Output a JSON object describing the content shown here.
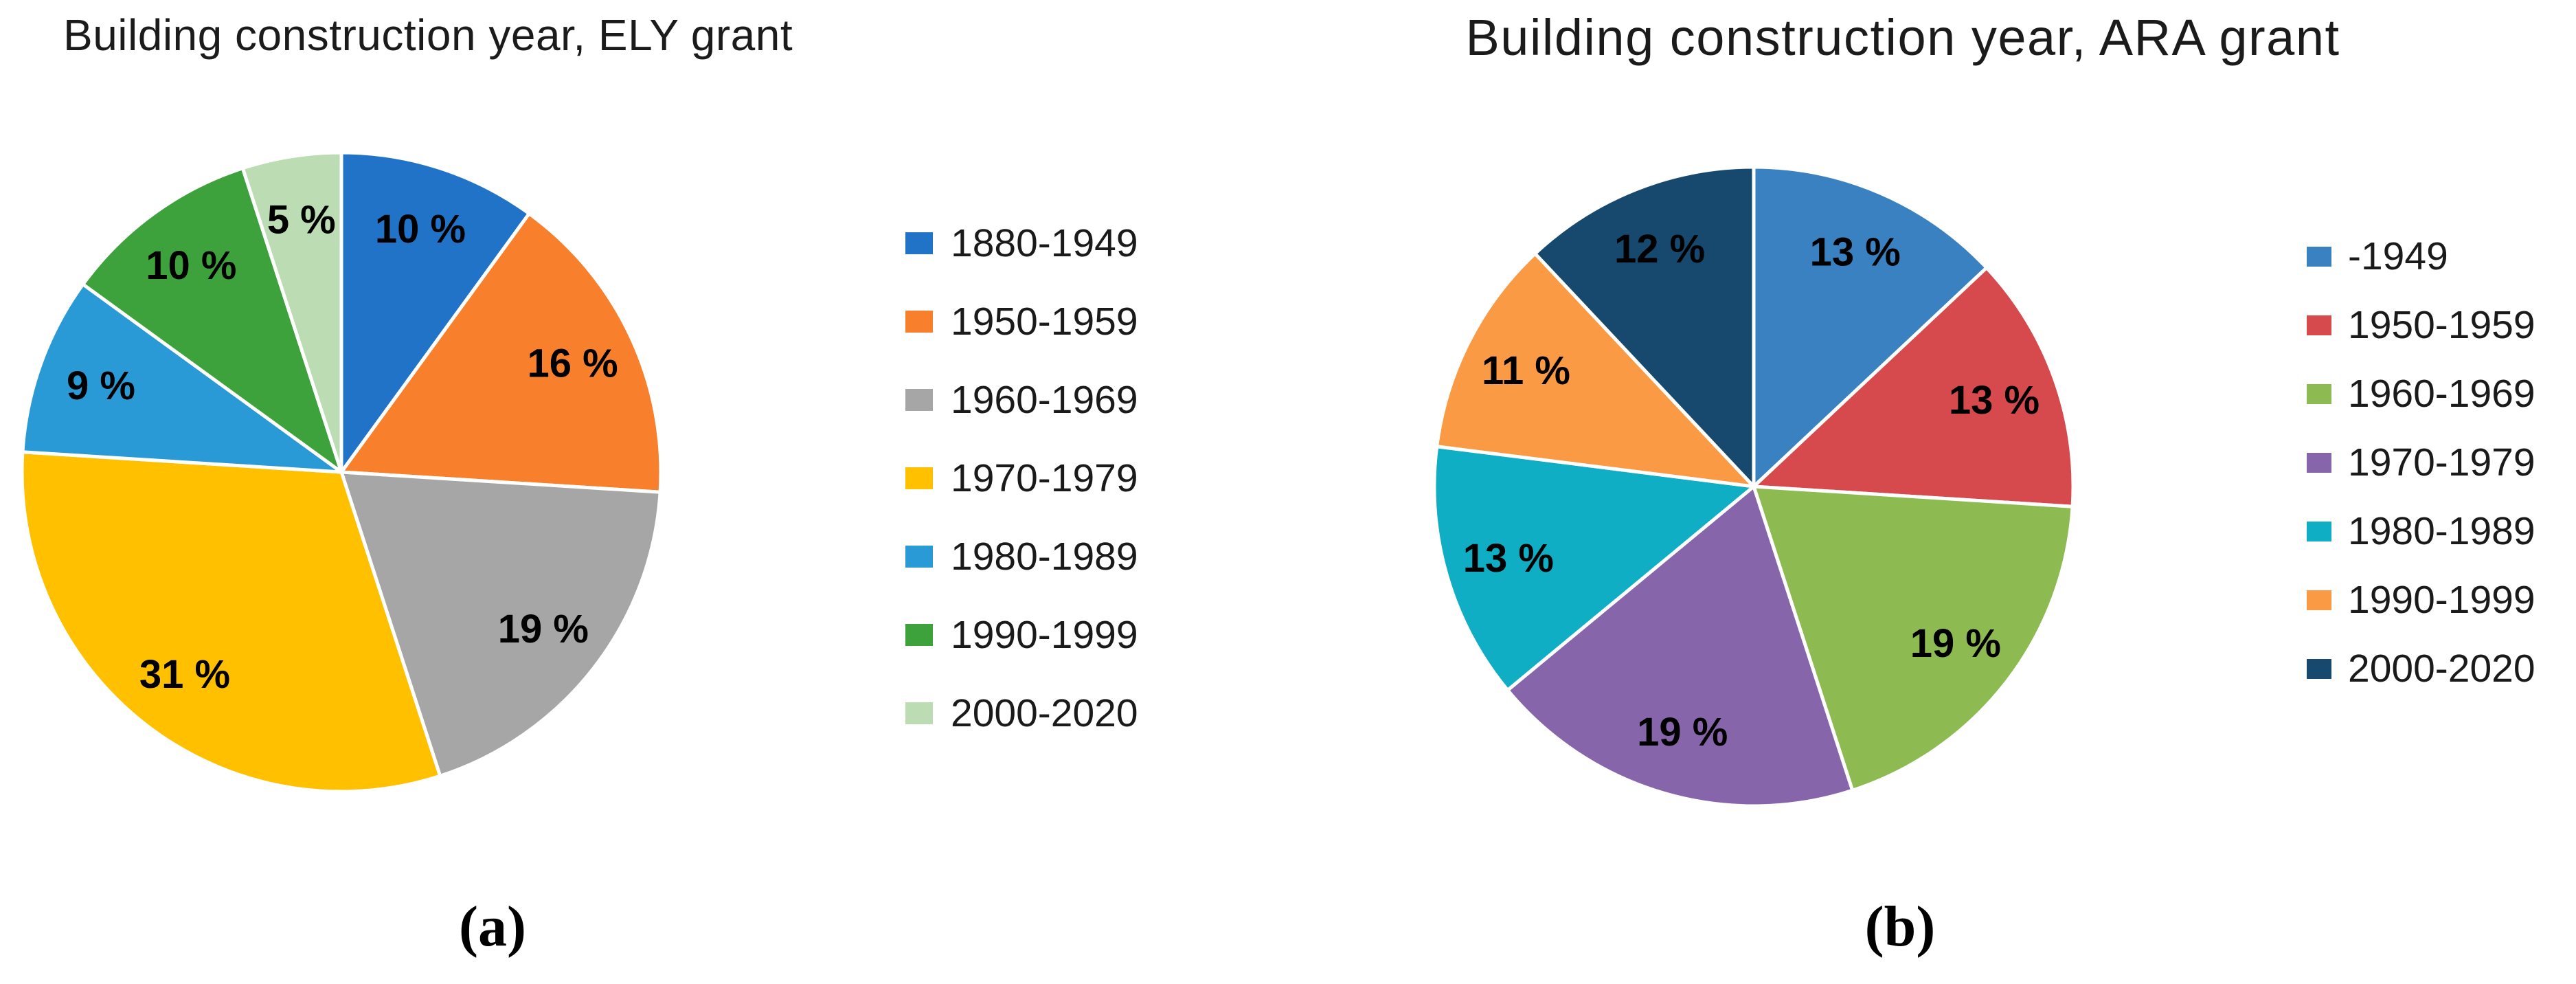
{
  "figure": {
    "panels": [
      {
        "caption": "(a)"
      },
      {
        "caption": "(b)"
      }
    ]
  },
  "chart_data": [
    {
      "type": "pie",
      "title": "Building construction year, ELY grant",
      "categories": [
        "1880-1949",
        "1950-1959",
        "1960-1969",
        "1970-1979",
        "1980-1989",
        "1990-1999",
        "2000-2020"
      ],
      "values": [
        10,
        16,
        19,
        31,
        9,
        10,
        5
      ],
      "unit": "%",
      "data_labels": [
        "10 %",
        "16 %",
        "19 %",
        "31 %",
        "9 %",
        "10 %",
        "5 %"
      ],
      "colors": [
        "#2173C7",
        "#F8802C",
        "#A6A6A6",
        "#FFC000",
        "#299AD6",
        "#3EA23C",
        "#BCDDB3"
      ],
      "slice_border_color": "#FFFFFF",
      "legend_position": "right",
      "start_angle_deg": 0,
      "direction": "clockwise",
      "background": "#FFFFFF"
    },
    {
      "type": "pie",
      "title": "Building construction year, ARA grant",
      "categories": [
        "-1949",
        "1950-1959",
        "1960-1969",
        "1970-1979",
        "1980-1989",
        "1990-1999",
        "2000-2020"
      ],
      "values": [
        13,
        13,
        19,
        19,
        13,
        11,
        12
      ],
      "unit": "%",
      "data_labels": [
        "13 %",
        "13 %",
        "19 %",
        "19 %",
        "13 %",
        "11 %",
        "12 %"
      ],
      "colors": [
        "#3A81C1",
        "#D64A4D",
        "#8EBB51",
        "#8765AB",
        "#0FAEC4",
        "#FA9A45",
        "#17486D"
      ],
      "slice_border_color": "#FFFFFF",
      "legend_position": "right",
      "start_angle_deg": 0,
      "direction": "clockwise",
      "background": "#FFFFFF"
    }
  ]
}
